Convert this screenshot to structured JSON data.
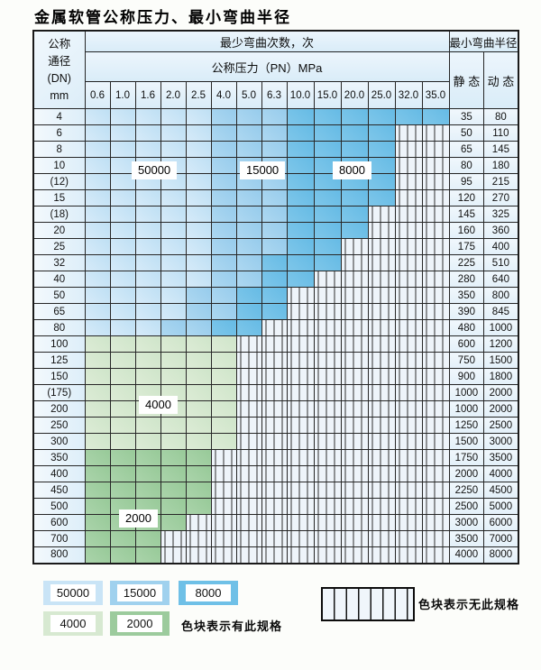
{
  "title": "金属软管公称压力、最小弯曲半径",
  "table": {
    "corner": {
      "line1": "公称",
      "line2": "通径",
      "line3": "(DN)",
      "line4": "mm"
    },
    "bend_header": "最少弯曲次数，次",
    "pressure_header": "公称压力（PN）MPa",
    "radius_header": "最小弯曲半径",
    "static_label": "静 态",
    "dynamic_label": "动 态",
    "pressures": [
      "0.6",
      "1.0",
      "1.6",
      "2.0",
      "2.5",
      "4.0",
      "5.0",
      "6.3",
      "10.0",
      "15.0",
      "20.0",
      "25.0",
      "32.0",
      "35.0"
    ],
    "cell_legend": {
      "L": "50000次区",
      "M": "15000次区",
      "D": "8000次区",
      "G": "4000次区",
      "E": "2000次区",
      "H": "无此规格"
    },
    "rows": [
      {
        "dn": "4",
        "cells": "LLLLLMMMDDDDDD",
        "static": "35",
        "dynamic": "80"
      },
      {
        "dn": "6",
        "cells": "LLLLLMMMDDDDHH",
        "static": "50",
        "dynamic": "110"
      },
      {
        "dn": "8",
        "cells": "LLLLLMMMDDDDHH",
        "static": "65",
        "dynamic": "145"
      },
      {
        "dn": "10",
        "cells": "LLLLLMMMDDDDHH",
        "static": "80",
        "dynamic": "180"
      },
      {
        "dn": "(12)",
        "cells": "LLLLLMMMDDDDHH",
        "static": "95",
        "dynamic": "215"
      },
      {
        "dn": "15",
        "cells": "LLLLLMMMDDDDHH",
        "static": "120",
        "dynamic": "270"
      },
      {
        "dn": "(18)",
        "cells": "LLLLLMMMDDDHHH",
        "static": "145",
        "dynamic": "325"
      },
      {
        "dn": "20",
        "cells": "LLLLLMMMDDDHHH",
        "static": "160",
        "dynamic": "360"
      },
      {
        "dn": "25",
        "cells": "LLLLLMMMDDHHHH",
        "static": "175",
        "dynamic": "400"
      },
      {
        "dn": "32",
        "cells": "LLLLLMMDDDHHHH",
        "static": "225",
        "dynamic": "510"
      },
      {
        "dn": "40",
        "cells": "LLLLLMMDDHHHHH",
        "static": "280",
        "dynamic": "640"
      },
      {
        "dn": "50",
        "cells": "LLLLMMDDHHHHHH",
        "static": "350",
        "dynamic": "800"
      },
      {
        "dn": "65",
        "cells": "LLLLMMDDHHHHHH",
        "static": "390",
        "dynamic": "845"
      },
      {
        "dn": "80",
        "cells": "LLLMMDDHHHHHHH",
        "static": "480",
        "dynamic": "1000"
      },
      {
        "dn": "100",
        "cells": "GGGGGGHHHHHHHH",
        "static": "600",
        "dynamic": "1200"
      },
      {
        "dn": "125",
        "cells": "GGGGGGHHHHHHHH",
        "static": "750",
        "dynamic": "1500"
      },
      {
        "dn": "150",
        "cells": "GGGGGGHHHHHHHH",
        "static": "900",
        "dynamic": "1800"
      },
      {
        "dn": "(175)",
        "cells": "GGGGGGHHHHHHHH",
        "static": "1000",
        "dynamic": "2000"
      },
      {
        "dn": "200",
        "cells": "GGGGGGHHHHHHHH",
        "static": "1000",
        "dynamic": "2000"
      },
      {
        "dn": "250",
        "cells": "GGGGGGHHHHHHHH",
        "static": "1250",
        "dynamic": "2500"
      },
      {
        "dn": "300",
        "cells": "GGGGGGHHHHHHHH",
        "static": "1500",
        "dynamic": "3000"
      },
      {
        "dn": "350",
        "cells": "EEEEEHHHHHHHHH",
        "static": "1750",
        "dynamic": "3500"
      },
      {
        "dn": "400",
        "cells": "EEEEEHHHHHHHHH",
        "static": "2000",
        "dynamic": "4000"
      },
      {
        "dn": "450",
        "cells": "EEEEEHHHHHHHHH",
        "static": "2250",
        "dynamic": "4500"
      },
      {
        "dn": "500",
        "cells": "EEEEEHHHHHHHHH",
        "static": "2500",
        "dynamic": "5000"
      },
      {
        "dn": "600",
        "cells": "EEEEHHHHHHHHHH",
        "static": "3000",
        "dynamic": "6000"
      },
      {
        "dn": "700",
        "cells": "EEEHHHHHHHHHHH",
        "static": "3500",
        "dynamic": "7000"
      },
      {
        "dn": "800",
        "cells": "EEEHHHHHHHHHHH",
        "static": "4000",
        "dynamic": "8000"
      }
    ]
  },
  "overlays": [
    "50000",
    "15000",
    "8000",
    "4000",
    "2000"
  ],
  "legend": {
    "items": [
      {
        "value": "50000",
        "color": "#c9e4f6"
      },
      {
        "value": "15000",
        "color": "#a0d1ee"
      },
      {
        "value": "8000",
        "color": "#6fc0e7"
      },
      {
        "value": "4000",
        "color": "#d7e9d1"
      },
      {
        "value": "2000",
        "color": "#9ccb9d"
      }
    ],
    "has_spec_note": "色块表示有此规格",
    "no_spec_note": "色块表示无此规格"
  },
  "colors": {
    "blue_50000": "#c9e4f6",
    "blue_15000": "#a0d1ee",
    "blue_8000": "#6fc0e7",
    "green_4000": "#d7e9d1",
    "green_2000": "#9ccb9d",
    "hatch_bg": "#eef4fa",
    "grid": "#262626"
  }
}
